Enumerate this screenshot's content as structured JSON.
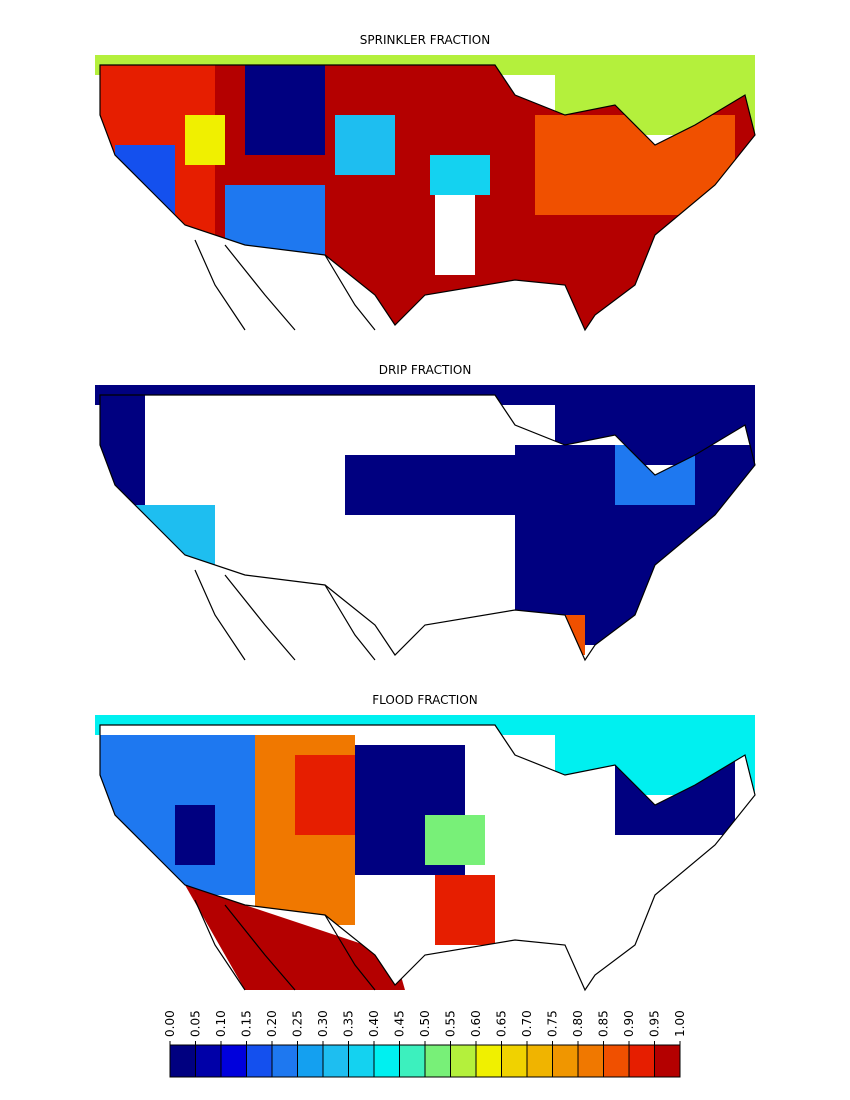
{
  "panels": [
    {
      "title": "SPRINKLER FRACTION"
    },
    {
      "title": "DRIP FRACTION"
    },
    {
      "title": "FLOOD FRACTION"
    }
  ],
  "colorbar": {
    "ticks": [
      {
        "value": 0,
        "label": "0.00"
      },
      {
        "value": 0.05,
        "label": "0.05"
      },
      {
        "value": 0.1,
        "label": "0.10"
      },
      {
        "value": 0.15,
        "label": "0.15"
      },
      {
        "value": 0.2,
        "label": "0.20"
      },
      {
        "value": 0.25,
        "label": "0.25"
      },
      {
        "value": 0.3,
        "label": "0.30"
      },
      {
        "value": 0.35,
        "label": "0.35"
      },
      {
        "value": 0.4,
        "label": "0.40"
      },
      {
        "value": 0.45,
        "label": "0.45"
      },
      {
        "value": 0.5,
        "label": "0.50"
      },
      {
        "value": 0.55,
        "label": "0.55"
      },
      {
        "value": 0.6,
        "label": "0.60"
      },
      {
        "value": 0.65,
        "label": "0.65"
      },
      {
        "value": 0.7,
        "label": "0.70"
      },
      {
        "value": 0.75,
        "label": "0.75"
      },
      {
        "value": 0.8,
        "label": "0.80"
      },
      {
        "value": 0.85,
        "label": "0.85"
      },
      {
        "value": 0.9,
        "label": "0.90"
      },
      {
        "value": 0.95,
        "label": "0.95"
      },
      {
        "value": 1,
        "label": "1.00"
      }
    ],
    "colors": [
      "#000080",
      "#0000a8",
      "#0000dc",
      "#1450ee",
      "#1e78f0",
      "#14a0f0",
      "#1ebef0",
      "#14d2f0",
      "#00f0f0",
      "#3cf0be",
      "#78f078",
      "#b4f03c",
      "#f0f000",
      "#f0d200",
      "#f0b400",
      "#f09600",
      "#f07800",
      "#f05000",
      "#e61e00",
      "#b40000"
    ]
  }
}
